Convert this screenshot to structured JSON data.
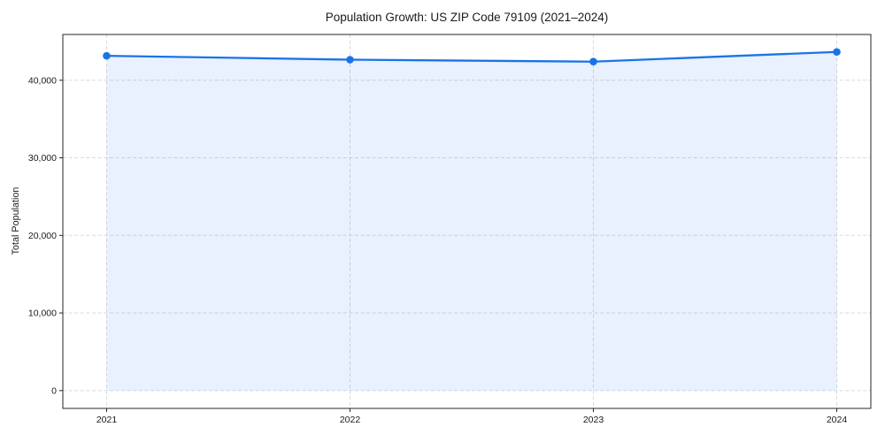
{
  "chart_data": {
    "type": "line",
    "title": "Population Growth: US ZIP Code 79109 (2021–2024)",
    "xlabel": "",
    "ylabel": "Total Population",
    "x": [
      2021,
      2022,
      2023,
      2024
    ],
    "series": [
      {
        "name": "Total Population",
        "values": [
          43150,
          42650,
          42400,
          43650
        ]
      }
    ],
    "fill_to_zero": true,
    "marker": "circle",
    "xticks": [
      2021,
      2022,
      2023,
      2024
    ],
    "xtick_labels": [
      "2021",
      "2022",
      "2023",
      "2024"
    ],
    "yticks": [
      0,
      10000,
      20000,
      30000,
      40000
    ],
    "ytick_labels": [
      "0",
      "10,000",
      "20,000",
      "30,000",
      "40,000"
    ],
    "xlim": [
      2020.82,
      2024.14
    ],
    "ylim": [
      -2300,
      45900
    ],
    "grid": true,
    "legend": false,
    "colors": {
      "line": "#1a73e8",
      "fill": "rgba(26,115,232,0.10)",
      "grid": "#d9d9d9",
      "spine": "#262626",
      "text": "#1a1a1a"
    }
  }
}
